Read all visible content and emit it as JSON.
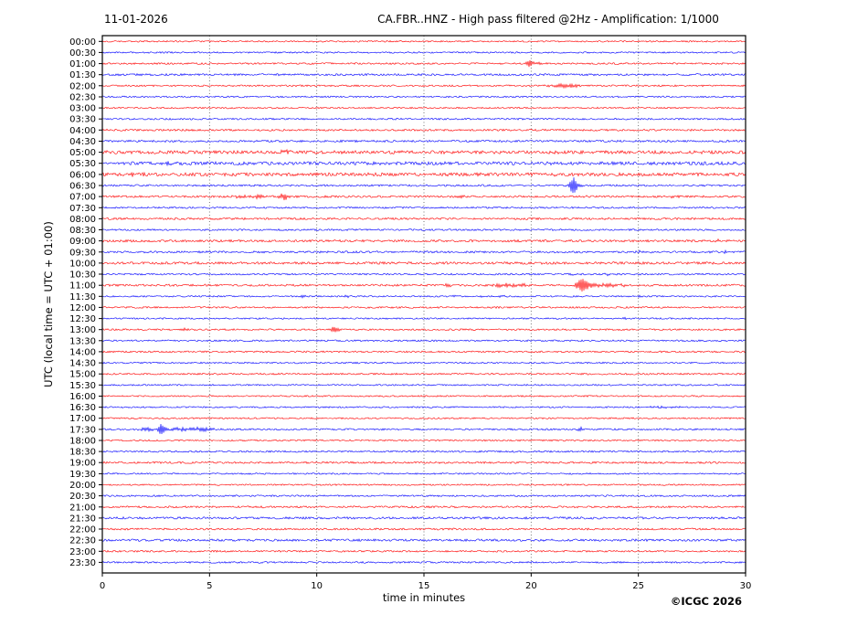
{
  "header": {
    "date": "11-01-2026",
    "title": "CA.FBR..HNZ - High pass filtered @2Hz - Amplification: 1/1000"
  },
  "axes": {
    "xlabel": "time in minutes",
    "ylabel": "UTC (local time = UTC + 01:00)"
  },
  "footer": {
    "copyright": "©ICGC 2026"
  },
  "chart_data": {
    "type": "line",
    "subtype": "helicorder-seismogram",
    "title": "CA.FBR..HNZ - High pass filtered @2Hz - Amplification: 1/1000",
    "date": "11-01-2026",
    "xlabel": "time in minutes",
    "ylabel": "UTC (local time = UTC + 01:00)",
    "x_range_minutes": [
      0,
      30
    ],
    "x_ticks": [
      0,
      5,
      10,
      15,
      20,
      25,
      30
    ],
    "grid_minutes": [
      5,
      10,
      15,
      20,
      25
    ],
    "row_interval_minutes": 30,
    "grid_on": true,
    "legend_position": "none",
    "colors": {
      "full_hour_trace": "#ff0000",
      "half_hour_trace": "#0000ff",
      "frame": "#000000",
      "grid": "#555555"
    },
    "encoding_note": "rows: t=UTC start of 30-min line, c=trace color, n=background noise half-amplitude (px), ev=transient events {m:minute within line, a:peak amplitude px, w:duration minutes}",
    "rows": [
      {
        "t": "00:00",
        "c": "red",
        "n": 0.8,
        "ev": []
      },
      {
        "t": "00:30",
        "c": "blue",
        "n": 0.8,
        "ev": []
      },
      {
        "t": "01:00",
        "c": "red",
        "n": 0.9,
        "ev": [
          {
            "m": 19.9,
            "a": 5.0,
            "w": 0.22
          },
          {
            "m": 20.35,
            "a": 1.3,
            "w": 0.6
          }
        ]
      },
      {
        "t": "01:30",
        "c": "blue",
        "n": 1.1,
        "ev": []
      },
      {
        "t": "02:00",
        "c": "red",
        "n": 0.9,
        "ev": [
          {
            "m": 21.6,
            "a": 1.9,
            "w": 1.0
          }
        ]
      },
      {
        "t": "02:30",
        "c": "blue",
        "n": 0.85,
        "ev": []
      },
      {
        "t": "03:00",
        "c": "red",
        "n": 0.8,
        "ev": []
      },
      {
        "t": "03:30",
        "c": "blue",
        "n": 0.9,
        "ev": []
      },
      {
        "t": "04:00",
        "c": "red",
        "n": 1.0,
        "ev": []
      },
      {
        "t": "04:30",
        "c": "blue",
        "n": 1.1,
        "ev": []
      },
      {
        "t": "05:00",
        "c": "red",
        "n": 1.8,
        "ev": [
          {
            "m": 8.6,
            "a": 1.2,
            "w": 0.8
          },
          {
            "m": 17.6,
            "a": 1.0,
            "w": 0.6
          }
        ]
      },
      {
        "t": "05:30",
        "c": "blue",
        "n": 1.8,
        "ev": [
          {
            "m": 3.2,
            "a": 1.2,
            "w": 0.7
          }
        ]
      },
      {
        "t": "06:00",
        "c": "red",
        "n": 1.8,
        "ev": [
          {
            "m": 1.5,
            "a": 1.2,
            "w": 0.6
          },
          {
            "m": 21.0,
            "a": 1.0,
            "w": 0.5
          }
        ]
      },
      {
        "t": "06:30",
        "c": "blue",
        "n": 1.0,
        "ev": [
          {
            "m": 21.95,
            "a": 8.0,
            "w": 0.3
          },
          {
            "m": 22.2,
            "a": 2.0,
            "w": 0.35
          }
        ]
      },
      {
        "t": "07:00",
        "c": "red",
        "n": 1.1,
        "ev": [
          {
            "m": 6.4,
            "a": 1.5,
            "w": 0.5
          },
          {
            "m": 7.3,
            "a": 2.0,
            "w": 0.45
          },
          {
            "m": 8.5,
            "a": 3.5,
            "w": 0.4
          },
          {
            "m": 16.7,
            "a": 1.3,
            "w": 0.25
          },
          {
            "m": 22.6,
            "a": 1.2,
            "w": 0.25
          },
          {
            "m": 26.7,
            "a": 1.3,
            "w": 0.25
          }
        ]
      },
      {
        "t": "07:30",
        "c": "blue",
        "n": 0.9,
        "ev": []
      },
      {
        "t": "08:00",
        "c": "red",
        "n": 1.1,
        "ev": []
      },
      {
        "t": "08:30",
        "c": "blue",
        "n": 0.9,
        "ev": []
      },
      {
        "t": "09:00",
        "c": "red",
        "n": 1.2,
        "ev": [
          {
            "m": 28.7,
            "a": 1.4,
            "w": 0.2
          }
        ]
      },
      {
        "t": "09:30",
        "c": "blue",
        "n": 1.1,
        "ev": [
          {
            "m": 25.05,
            "a": 1.2,
            "w": 0.2
          },
          {
            "m": 29.1,
            "a": 1.4,
            "w": 0.25
          }
        ]
      },
      {
        "t": "10:00",
        "c": "red",
        "n": 1.3,
        "ev": []
      },
      {
        "t": "10:30",
        "c": "blue",
        "n": 0.9,
        "ev": [
          {
            "m": 21.9,
            "a": 1.2,
            "w": 0.2
          },
          {
            "m": 23.6,
            "a": 1.3,
            "w": 0.2
          }
        ]
      },
      {
        "t": "11:00",
        "c": "red",
        "n": 1.1,
        "ev": [
          {
            "m": 16.1,
            "a": 1.7,
            "w": 0.25
          },
          {
            "m": 18.8,
            "a": 1.8,
            "w": 0.8
          },
          {
            "m": 19.5,
            "a": 1.2,
            "w": 0.5
          },
          {
            "m": 22.37,
            "a": 9.0,
            "w": 0.35
          },
          {
            "m": 22.95,
            "a": 2.5,
            "w": 0.6
          },
          {
            "m": 23.65,
            "a": 2.8,
            "w": 0.4
          },
          {
            "m": 24.3,
            "a": 1.5,
            "w": 0.3
          }
        ]
      },
      {
        "t": "11:30",
        "c": "blue",
        "n": 0.8,
        "ev": [
          {
            "m": 9.3,
            "a": 1.3,
            "w": 0.25
          },
          {
            "m": 11.4,
            "a": 1.3,
            "w": 0.25
          },
          {
            "m": 16.4,
            "a": 0.9,
            "w": 0.3
          },
          {
            "m": 17.7,
            "a": 1.0,
            "w": 0.3
          },
          {
            "m": 18.7,
            "a": 0.9,
            "w": 0.3
          },
          {
            "m": 25.0,
            "a": 0.9,
            "w": 0.25
          }
        ]
      },
      {
        "t": "12:00",
        "c": "red",
        "n": 0.9,
        "ev": []
      },
      {
        "t": "12:30",
        "c": "blue",
        "n": 0.8,
        "ev": [
          {
            "m": 24.37,
            "a": 1.8,
            "w": 0.15
          }
        ]
      },
      {
        "t": "13:00",
        "c": "red",
        "n": 0.9,
        "ev": [
          {
            "m": 3.85,
            "a": 2.2,
            "w": 0.2
          },
          {
            "m": 10.85,
            "a": 4.0,
            "w": 0.3
          }
        ]
      },
      {
        "t": "13:30",
        "c": "blue",
        "n": 0.9,
        "ev": []
      },
      {
        "t": "14:00",
        "c": "red",
        "n": 0.9,
        "ev": []
      },
      {
        "t": "14:30",
        "c": "blue",
        "n": 0.8,
        "ev": []
      },
      {
        "t": "15:00",
        "c": "red",
        "n": 0.9,
        "ev": []
      },
      {
        "t": "15:30",
        "c": "blue",
        "n": 0.8,
        "ev": []
      },
      {
        "t": "16:00",
        "c": "red",
        "n": 0.8,
        "ev": []
      },
      {
        "t": "16:30",
        "c": "blue",
        "n": 0.8,
        "ev": [
          {
            "m": 26.3,
            "a": 0.9,
            "w": 1.2
          }
        ]
      },
      {
        "t": "17:00",
        "c": "red",
        "n": 0.8,
        "ev": []
      },
      {
        "t": "17:30",
        "c": "blue",
        "n": 0.9,
        "ev": [
          {
            "m": 2.2,
            "a": 1.8,
            "w": 0.8
          },
          {
            "m": 2.77,
            "a": 6.5,
            "w": 0.22
          },
          {
            "m": 3.6,
            "a": 1.4,
            "w": 0.7
          },
          {
            "m": 4.6,
            "a": 2.0,
            "w": 0.9
          },
          {
            "m": 22.3,
            "a": 2.2,
            "w": 0.25
          }
        ]
      },
      {
        "t": "18:00",
        "c": "red",
        "n": 0.8,
        "ev": []
      },
      {
        "t": "18:30",
        "c": "blue",
        "n": 0.9,
        "ev": []
      },
      {
        "t": "19:00",
        "c": "red",
        "n": 1.0,
        "ev": []
      },
      {
        "t": "19:30",
        "c": "blue",
        "n": 0.8,
        "ev": []
      },
      {
        "t": "20:00",
        "c": "red",
        "n": 0.8,
        "ev": []
      },
      {
        "t": "20:30",
        "c": "blue",
        "n": 0.9,
        "ev": []
      },
      {
        "t": "21:00",
        "c": "red",
        "n": 1.0,
        "ev": []
      },
      {
        "t": "21:30",
        "c": "blue",
        "n": 1.2,
        "ev": []
      },
      {
        "t": "22:00",
        "c": "red",
        "n": 1.0,
        "ev": []
      },
      {
        "t": "22:30",
        "c": "blue",
        "n": 1.2,
        "ev": []
      },
      {
        "t": "23:00",
        "c": "red",
        "n": 0.9,
        "ev": []
      },
      {
        "t": "23:30",
        "c": "blue",
        "n": 0.9,
        "ev": []
      }
    ]
  }
}
